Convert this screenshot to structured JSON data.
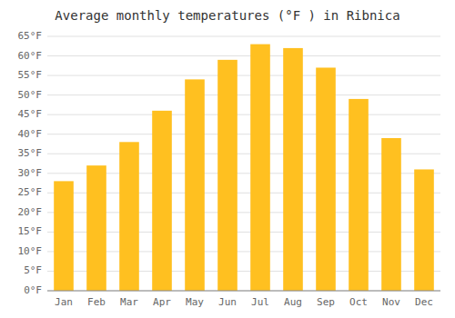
{
  "chart_data": {
    "type": "bar",
    "title": "Average monthly temperatures (°F ) in Ribnica",
    "categories": [
      "Jan",
      "Feb",
      "Mar",
      "Apr",
      "May",
      "Jun",
      "Jul",
      "Aug",
      "Sep",
      "Oct",
      "Nov",
      "Dec"
    ],
    "values": [
      28,
      32,
      38,
      46,
      54,
      59,
      63,
      62,
      57,
      49,
      39,
      31
    ],
    "color": "#FFC020",
    "ylim": [
      0,
      65
    ],
    "yticks": [
      {
        "value": 0,
        "label": "0°F"
      },
      {
        "value": 5,
        "label": "5°F"
      },
      {
        "value": 10,
        "label": "10°F"
      },
      {
        "value": 15,
        "label": "15°F"
      },
      {
        "value": 20,
        "label": "20°F"
      },
      {
        "value": 25,
        "label": "25°F"
      },
      {
        "value": 30,
        "label": "30°F"
      },
      {
        "value": 35,
        "label": "35°F"
      },
      {
        "value": 40,
        "label": "40°F"
      },
      {
        "value": 45,
        "label": "45°F"
      },
      {
        "value": 50,
        "label": "50°F"
      },
      {
        "value": 55,
        "label": "55°F"
      },
      {
        "value": 60,
        "label": "60°F"
      },
      {
        "value": 65,
        "label": "65°F"
      }
    ],
    "grid": true
  }
}
